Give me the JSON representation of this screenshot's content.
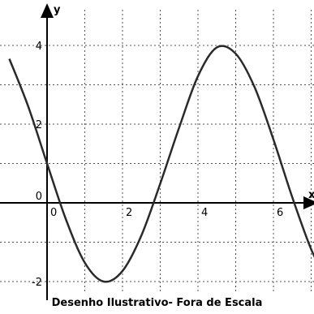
{
  "chart_data": {
    "type": "line",
    "xlabel": "x",
    "ylabel": "y",
    "xlim": [
      -1.0,
      7.3
    ],
    "ylim": [
      -2.6,
      5.0
    ],
    "grid": true,
    "x_ticks": [
      0,
      1,
      2,
      3,
      4,
      5,
      6,
      7
    ],
    "y_ticks": [
      -2,
      -1,
      1,
      2,
      3,
      4
    ],
    "x_tick_labels": [
      {
        "value": 0,
        "text": "0"
      },
      {
        "value": 2,
        "text": "2"
      },
      {
        "value": 4,
        "text": "4"
      },
      {
        "value": 6,
        "text": "6"
      }
    ],
    "y_tick_labels": [
      {
        "value": 4,
        "text": "4"
      },
      {
        "value": 2,
        "text": "2"
      },
      {
        "value": 0,
        "text": "0"
      },
      {
        "value": -2,
        "text": "-2"
      }
    ],
    "series": [
      {
        "x": [
          -1.0,
          -0.5,
          0,
          0.5,
          1.0,
          1.5,
          2.0,
          2.5,
          3.0,
          3.5,
          4.0,
          4.5,
          5.0,
          5.5,
          6.0,
          6.5,
          7.0,
          7.3
        ],
        "y": [
          3.66,
          2.45,
          1.0,
          -0.42,
          -1.52,
          -2.0,
          -1.73,
          -0.83,
          0.49,
          1.91,
          3.22,
          3.95,
          3.79,
          2.94,
          1.61,
          0.14,
          -1.18,
          -1.72
        ]
      }
    ]
  },
  "caption": "Desenho Ilustrativo- Fora de Escala"
}
